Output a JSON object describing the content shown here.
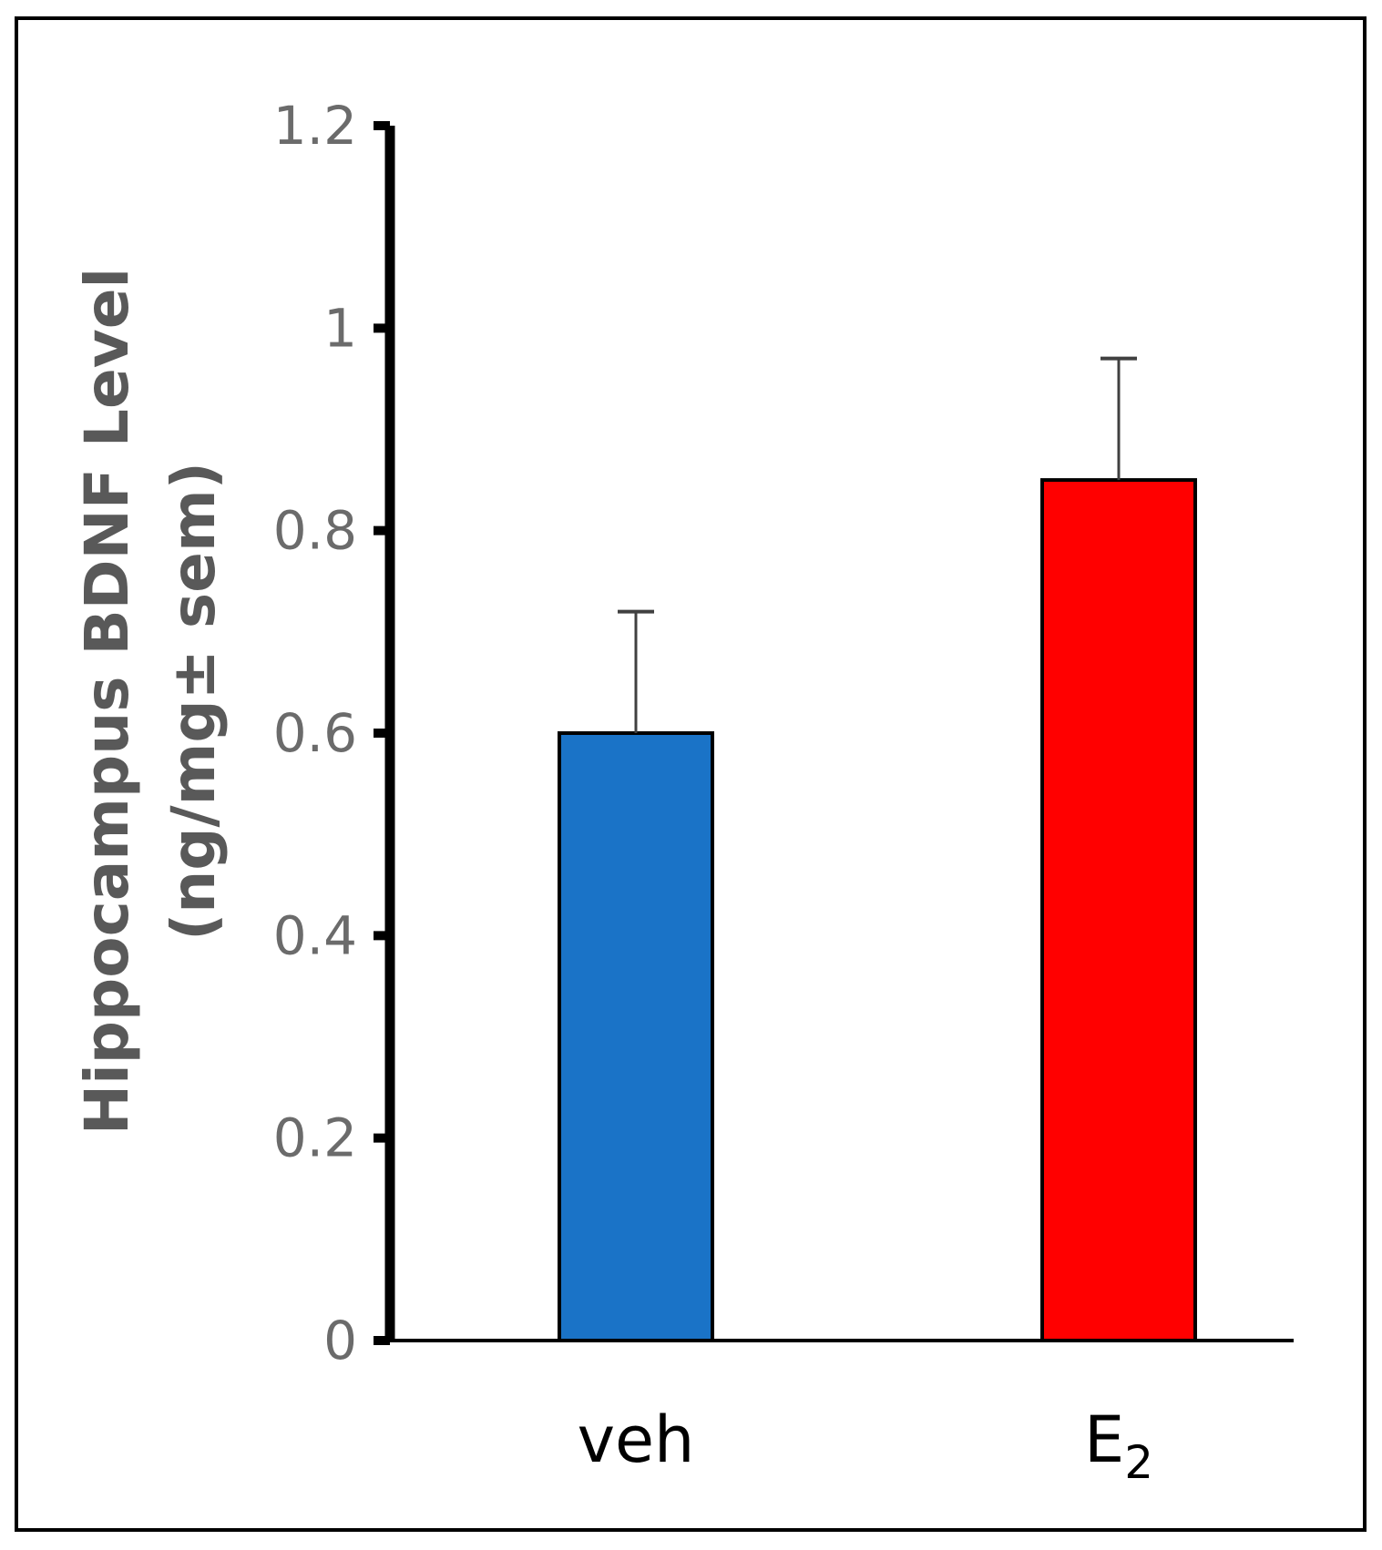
{
  "chart_data": {
    "type": "bar",
    "categories": [
      "veh",
      "E2"
    ],
    "category_labels": [
      {
        "main": "veh",
        "sub": ""
      },
      {
        "main": "E",
        "sub": "2"
      }
    ],
    "values": [
      0.6,
      0.85
    ],
    "error_bars": [
      0.12,
      0.12
    ],
    "colors": [
      "#1a73c7",
      "#ff0000"
    ],
    "ylabel_lines": [
      "Hippocampus BDNF Level",
      "(ng/mg± sem)"
    ],
    "ylim": [
      0,
      1.2
    ],
    "yticks": [
      0,
      0.2,
      0.4,
      0.6,
      0.8,
      1,
      1.2
    ],
    "ytick_labels": [
      "0",
      "0.2",
      "0.4",
      "0.6",
      "0.8",
      "1",
      "1.2"
    ],
    "grid": false,
    "legend": false
  }
}
